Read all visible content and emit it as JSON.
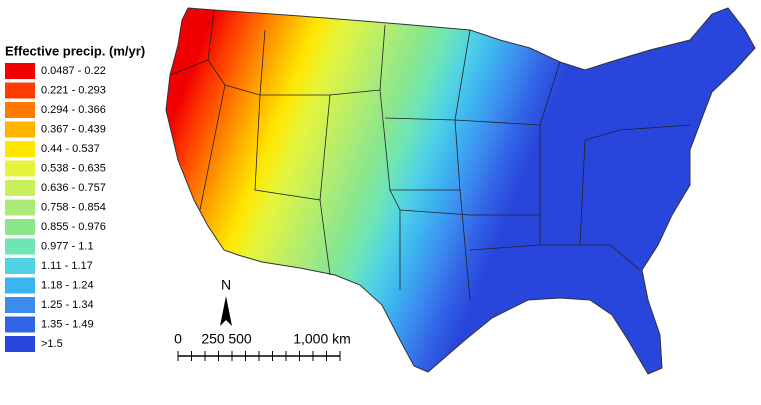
{
  "legend": {
    "title": "Effective precip. (m/yr)",
    "items": [
      {
        "label": "0.0487 - 0.22",
        "color": "#f00000"
      },
      {
        "label": "0.221 - 0.293",
        "color": "#ff3c00"
      },
      {
        "label": "0.294 - 0.366",
        "color": "#ff7a00"
      },
      {
        "label": "0.367 - 0.439",
        "color": "#ffb400"
      },
      {
        "label": "0.44 - 0.537",
        "color": "#ffe600"
      },
      {
        "label": "0.538 - 0.635",
        "color": "#e6f53c"
      },
      {
        "label": "0.636 - 0.757",
        "color": "#c8f05a"
      },
      {
        "label": "0.758 - 0.854",
        "color": "#aaeb78"
      },
      {
        "label": "0.855 - 0.976",
        "color": "#8ce68c"
      },
      {
        "label": "0.977 - 1.1",
        "color": "#6ee6b4"
      },
      {
        "label": "1.11 - 1.17",
        "color": "#50d2e6"
      },
      {
        "label": "1.18 - 1.24",
        "color": "#3cb4f0"
      },
      {
        "label": "1.25 - 1.34",
        "color": "#3c8cf0"
      },
      {
        "label": "1.35 - 1.49",
        "color": "#3264e6"
      },
      {
        "label": ">1.5",
        "color": "#2846dc"
      }
    ]
  },
  "north_arrow": {
    "label": "N"
  },
  "scale_bar": {
    "labels": [
      "0",
      "250",
      "500",
      "1,000 km"
    ]
  }
}
